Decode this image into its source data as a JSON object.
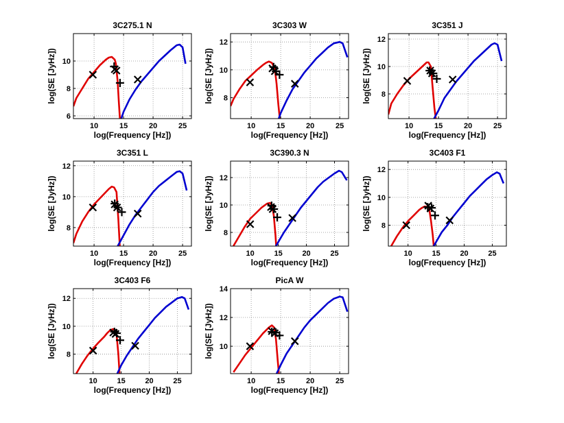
{
  "colors": {
    "synchrotron": "#e00000",
    "inverse_compton": "#0000d0",
    "observed": "#000000",
    "grid": "#8a8a8a"
  },
  "chart_data": [
    {
      "type": "line",
      "title": "3C275.1 N",
      "xlabel": "log(Frequency [Hz])",
      "ylabel": "log(SE [JyHz])",
      "xlim": [
        6.5,
        26.5
      ],
      "ylim": [
        5.8,
        12.0
      ],
      "xticks": [
        10,
        15,
        20,
        25
      ],
      "yticks": [
        6,
        8,
        10
      ],
      "grid": true,
      "series": [
        {
          "kind": "model-low",
          "x": [
            6.5,
            7,
            8,
            9,
            10,
            11,
            12,
            12.5,
            13,
            13.5,
            13.7,
            14,
            14.2,
            14.5
          ],
          "y": [
            6.7,
            7.3,
            8.0,
            8.7,
            9.2,
            9.7,
            10.1,
            10.25,
            10.3,
            10.1,
            9.8,
            8.5,
            7.0,
            5.0
          ]
        },
        {
          "kind": "model-high",
          "x": [
            14,
            15,
            16,
            17,
            18,
            19,
            20,
            21,
            22,
            23,
            24,
            24.5,
            25,
            25.5
          ],
          "y": [
            5.0,
            6.3,
            7.2,
            7.9,
            8.5,
            9.0,
            9.5,
            10.0,
            10.4,
            10.8,
            11.15,
            11.2,
            11.0,
            9.8
          ]
        },
        {
          "kind": "obs-x",
          "x": [
            9.8,
            13.5,
            13.8,
            17.4
          ],
          "y": [
            9.0,
            9.4,
            9.3,
            8.65
          ]
        },
        {
          "kind": "obs-plus",
          "x": [
            13.4,
            14.4
          ],
          "y": [
            9.6,
            8.4
          ]
        }
      ]
    },
    {
      "type": "line",
      "title": "3C303 W",
      "xlabel": "log(Frequency [Hz])",
      "ylabel": "log(SE [JyHz])",
      "xlim": [
        6.5,
        26.5
      ],
      "ylim": [
        6.5,
        12.6
      ],
      "xticks": [
        10,
        15,
        20,
        25
      ],
      "yticks": [
        8,
        10,
        12
      ],
      "grid": true,
      "series": [
        {
          "kind": "model-low",
          "x": [
            6.5,
            7,
            8,
            9,
            10,
            11,
            12,
            12.5,
            13,
            13.5,
            14,
            14.3,
            14.6,
            14.9
          ],
          "y": [
            7.4,
            7.9,
            8.6,
            9.2,
            9.6,
            10.0,
            10.35,
            10.5,
            10.6,
            10.5,
            10.1,
            9.0,
            7.5,
            6.3
          ]
        },
        {
          "kind": "model-high",
          "x": [
            14.5,
            15,
            16,
            17,
            18,
            19,
            20,
            21,
            22,
            23,
            24,
            25,
            25.5,
            26.3
          ],
          "y": [
            6.3,
            6.9,
            7.8,
            8.6,
            9.2,
            9.8,
            10.3,
            10.8,
            11.2,
            11.6,
            11.9,
            12.0,
            11.9,
            10.9
          ]
        },
        {
          "kind": "obs-x",
          "x": [
            9.8,
            13.6,
            14.0,
            17.4
          ],
          "y": [
            9.1,
            10.1,
            9.9,
            9.0
          ]
        },
        {
          "kind": "obs-plus",
          "x": [
            13.8,
            14.2,
            14.8
          ],
          "y": [
            10.2,
            9.9,
            9.65
          ]
        }
      ]
    },
    {
      "type": "line",
      "title": "3C351 J",
      "xlabel": "log(Frequency [Hz])",
      "ylabel": "log(SE [JyHz])",
      "xlim": [
        6.5,
        26.5
      ],
      "ylim": [
        6.2,
        12.4
      ],
      "xticks": [
        10,
        15,
        20,
        25
      ],
      "yticks": [
        8,
        10,
        12
      ],
      "grid": true,
      "series": [
        {
          "kind": "model-low",
          "x": [
            6.5,
            7,
            8,
            9,
            10,
            11,
            12,
            12.5,
            13,
            13.3,
            13.7,
            14,
            14.3,
            14.6
          ],
          "y": [
            6.5,
            7.3,
            8.0,
            8.6,
            9.1,
            9.5,
            9.9,
            10.1,
            10.3,
            10.3,
            10.0,
            8.5,
            7.0,
            6.0
          ]
        },
        {
          "kind": "model-high",
          "x": [
            14,
            15,
            16,
            17,
            18,
            19,
            20,
            21,
            22,
            23,
            24,
            24.5,
            25,
            25.7
          ],
          "y": [
            6.0,
            6.8,
            7.7,
            8.3,
            8.9,
            9.4,
            9.9,
            10.4,
            10.8,
            11.2,
            11.6,
            11.7,
            11.6,
            10.4
          ]
        },
        {
          "kind": "obs-x",
          "x": [
            9.7,
            13.6,
            13.9,
            17.4
          ],
          "y": [
            8.95,
            9.7,
            9.5,
            9.05
          ]
        },
        {
          "kind": "obs-plus",
          "x": [
            13.5,
            14.1,
            14.7
          ],
          "y": [
            9.7,
            9.5,
            9.1
          ]
        }
      ]
    },
    {
      "type": "line",
      "title": "3C351 L",
      "xlabel": "log(Frequency [Hz])",
      "ylabel": "log(SE [JyHz])",
      "xlim": [
        6.5,
        26.5
      ],
      "ylim": [
        6.8,
        12.3
      ],
      "xticks": [
        10,
        15,
        20,
        25
      ],
      "yticks": [
        8,
        10,
        12
      ],
      "grid": true,
      "series": [
        {
          "kind": "model-low",
          "x": [
            6.5,
            7,
            8,
            9,
            10,
            11,
            12,
            12.5,
            13,
            13.4,
            13.8,
            14.1,
            14.3,
            14.6
          ],
          "y": [
            7.0,
            7.6,
            8.4,
            9.0,
            9.5,
            9.9,
            10.3,
            10.5,
            10.65,
            10.6,
            10.3,
            8.6,
            7.2,
            5.0
          ]
        },
        {
          "kind": "model-high",
          "x": [
            14,
            15,
            16,
            17,
            18,
            19,
            20,
            21,
            22,
            23,
            24,
            24.5,
            25,
            25.7
          ],
          "y": [
            6.8,
            7.5,
            8.2,
            8.8,
            9.3,
            9.8,
            10.3,
            10.7,
            11.0,
            11.3,
            11.6,
            11.65,
            11.5,
            10.4
          ]
        },
        {
          "kind": "obs-x",
          "x": [
            9.8,
            13.5,
            13.9,
            17.4
          ],
          "y": [
            9.3,
            9.5,
            9.3,
            8.9
          ]
        },
        {
          "kind": "obs-plus",
          "x": [
            13.5,
            14.0,
            14.7
          ],
          "y": [
            9.55,
            9.3,
            9.0
          ]
        }
      ]
    },
    {
      "type": "line",
      "title": "3C390.3 N",
      "xlabel": "log(Frequency [Hz])",
      "ylabel": "log(SE [JyHz])",
      "xlim": [
        6.5,
        27.5
      ],
      "ylim": [
        7.0,
        13.2
      ],
      "xticks": [
        10,
        15,
        20,
        25
      ],
      "yticks": [
        8,
        10,
        12
      ],
      "grid": true,
      "series": [
        {
          "kind": "model-low",
          "x": [
            7,
            8,
            9,
            10,
            11,
            12,
            12.5,
            13,
            13.5,
            13.9,
            14.2,
            14.5,
            14.7
          ],
          "y": [
            7.0,
            7.7,
            8.4,
            9.0,
            9.4,
            9.8,
            9.95,
            10.1,
            10.15,
            10.0,
            9.2,
            7.8,
            6.5
          ]
        },
        {
          "kind": "model-high",
          "x": [
            14.3,
            15,
            16,
            17,
            18,
            19,
            20,
            21,
            22,
            23,
            24,
            25,
            25.8,
            26.3,
            27.2
          ],
          "y": [
            6.8,
            7.3,
            8.0,
            8.6,
            9.2,
            9.8,
            10.3,
            10.8,
            11.3,
            11.7,
            12.0,
            12.3,
            12.5,
            12.4,
            11.8
          ]
        },
        {
          "kind": "obs-x",
          "x": [
            10.0,
            13.7,
            14.0,
            17.5
          ],
          "y": [
            8.6,
            9.85,
            9.7,
            9.05
          ]
        },
        {
          "kind": "obs-plus",
          "x": [
            13.8,
            14.2,
            14.8
          ],
          "y": [
            9.95,
            9.7,
            9.1
          ]
        }
      ]
    },
    {
      "type": "line",
      "title": "3C403 F1",
      "xlabel": "log(Frequency [Hz])",
      "ylabel": "log(SE [JyHz])",
      "xlim": [
        6.5,
        27.5
      ],
      "ylim": [
        6.5,
        12.6
      ],
      "xticks": [
        10,
        15,
        20,
        25
      ],
      "yticks": [
        8,
        10,
        12
      ],
      "grid": true,
      "series": [
        {
          "kind": "model-low",
          "x": [
            7,
            8,
            9,
            10,
            11,
            12,
            12.5,
            13,
            13.5,
            13.8,
            14.1,
            14.4,
            14.6
          ],
          "y": [
            6.5,
            7.2,
            7.8,
            8.3,
            8.7,
            9.1,
            9.25,
            9.35,
            9.3,
            9.1,
            8.3,
            7.3,
            6.4
          ]
        },
        {
          "kind": "model-high",
          "x": [
            14.3,
            15,
            16,
            17,
            18,
            19,
            20,
            21,
            22,
            23,
            24,
            25,
            25.8,
            26.3,
            27.0
          ],
          "y": [
            6.3,
            6.8,
            7.5,
            8.0,
            8.6,
            9.1,
            9.6,
            10.1,
            10.5,
            10.9,
            11.3,
            11.6,
            11.8,
            11.7,
            11.0
          ]
        },
        {
          "kind": "obs-x",
          "x": [
            9.7,
            13.6,
            14.0,
            17.4
          ],
          "y": [
            8.0,
            9.4,
            9.2,
            8.35
          ]
        },
        {
          "kind": "obs-plus",
          "x": [
            13.5,
            14.2,
            14.8
          ],
          "y": [
            9.3,
            9.25,
            8.7
          ]
        }
      ]
    },
    {
      "type": "line",
      "title": "3C403 F6",
      "xlabel": "log(Frequency [Hz])",
      "ylabel": "log(SE [JyHz])",
      "xlim": [
        6.5,
        27.5
      ],
      "ylim": [
        6.6,
        12.7
      ],
      "xticks": [
        10,
        15,
        20,
        25
      ],
      "yticks": [
        8,
        10,
        12
      ],
      "grid": true,
      "series": [
        {
          "kind": "model-low",
          "x": [
            7,
            8,
            9,
            10,
            11,
            12,
            12.5,
            13,
            13.5,
            13.8,
            14.2,
            14.5,
            14.7
          ],
          "y": [
            6.6,
            7.3,
            7.9,
            8.4,
            8.85,
            9.25,
            9.5,
            9.7,
            9.8,
            9.75,
            9.3,
            8.0,
            6.6
          ]
        },
        {
          "kind": "model-high",
          "x": [
            14.3,
            15,
            16,
            17,
            18,
            19,
            20,
            21,
            22,
            23,
            24,
            25,
            25.8,
            26.3,
            27.0
          ],
          "y": [
            6.6,
            7.2,
            7.9,
            8.5,
            9.1,
            9.6,
            10.1,
            10.6,
            11.0,
            11.4,
            11.7,
            12.0,
            12.1,
            12.0,
            11.2
          ]
        },
        {
          "kind": "obs-x",
          "x": [
            10.0,
            13.6,
            14.0,
            17.5
          ],
          "y": [
            8.25,
            9.55,
            9.45,
            8.6
          ]
        },
        {
          "kind": "obs-plus",
          "x": [
            13.8,
            14.2,
            14.8
          ],
          "y": [
            9.6,
            9.5,
            9.0
          ]
        }
      ]
    },
    {
      "type": "line",
      "title": "PicA W",
      "xlabel": "log(Frequency [Hz])",
      "ylabel": "log(SE [JyHz])",
      "xlim": [
        6.5,
        26.5
      ],
      "ylim": [
        8.1,
        14.0
      ],
      "xticks": [
        10,
        15,
        20,
        25
      ],
      "yticks": [
        10,
        12,
        14
      ],
      "grid": true,
      "series": [
        {
          "kind": "model-low",
          "x": [
            7,
            8,
            9,
            10,
            11,
            12,
            12.5,
            13,
            13.5,
            13.9,
            14.2,
            14.5,
            14.7
          ],
          "y": [
            8.2,
            8.8,
            9.4,
            9.9,
            10.4,
            10.9,
            11.1,
            11.3,
            11.45,
            11.3,
            10.5,
            9.0,
            8.1
          ]
        },
        {
          "kind": "model-high",
          "x": [
            14.3,
            15,
            16,
            17,
            18,
            19,
            20,
            21,
            22,
            23,
            24,
            25,
            25.5,
            26.3
          ],
          "y": [
            8.1,
            8.7,
            9.5,
            10.1,
            10.7,
            11.3,
            11.8,
            12.2,
            12.6,
            13.0,
            13.3,
            13.45,
            13.4,
            12.4
          ]
        },
        {
          "kind": "obs-x",
          "x": [
            9.8,
            13.5,
            14.0,
            17.4
          ],
          "y": [
            10.0,
            11.05,
            10.9,
            10.35
          ]
        },
        {
          "kind": "obs-plus",
          "x": [
            13.5,
            14.2,
            14.8
          ],
          "y": [
            11.0,
            10.95,
            10.75
          ]
        }
      ]
    }
  ]
}
